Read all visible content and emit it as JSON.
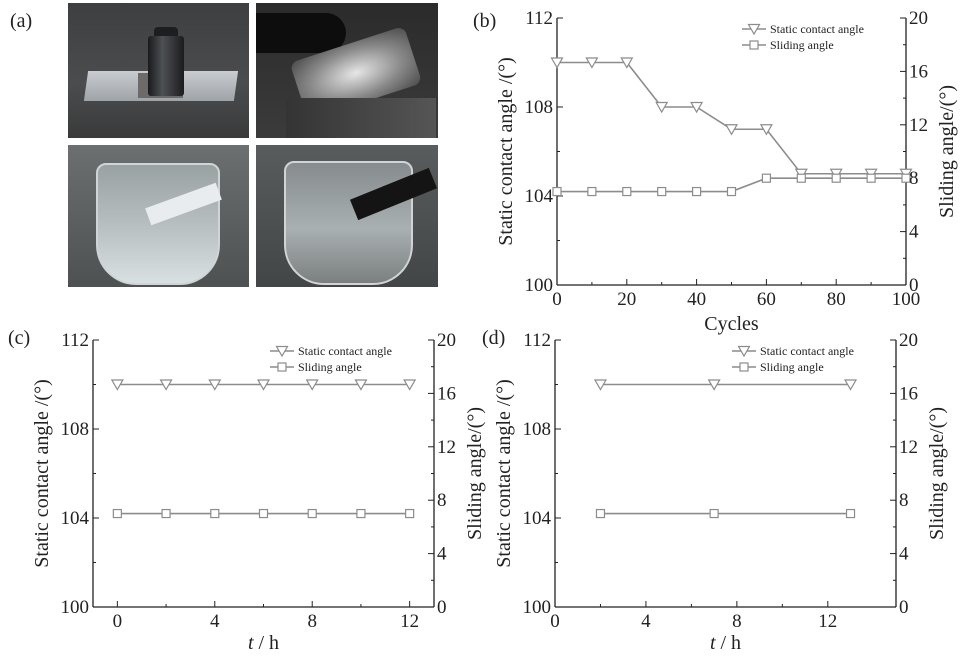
{
  "panels": {
    "a": "(a)",
    "b": "(b)",
    "c": "(c)",
    "d": "(d)"
  },
  "photos": [
    {
      "content": "weight on coated plate"
    },
    {
      "content": "abrasion with foil"
    },
    {
      "content": "sample in beaker of water"
    },
    {
      "content": "sample in beaker"
    }
  ],
  "chart_data": [
    {
      "panel": "b",
      "type": "line",
      "xlabel": "Cycles",
      "ylabel_left": "Static contact angle /(°)",
      "ylabel_right": "Sliding angle/(°)",
      "xlim": [
        0,
        100
      ],
      "ylim_left": [
        100,
        112
      ],
      "ylim_right": [
        0,
        20
      ],
      "x_ticks": [
        0,
        20,
        40,
        60,
        80,
        100
      ],
      "y_ticks_left": [
        100,
        104,
        108,
        112
      ],
      "y_ticks_right": [
        0,
        4,
        8,
        12,
        16,
        20
      ],
      "legend": "top-right",
      "series": [
        {
          "name": "Static contact angle",
          "axis": "left",
          "marker": "triangle-down",
          "x": [
            0,
            10,
            20,
            30,
            40,
            50,
            60,
            70,
            80,
            90,
            100
          ],
          "y": [
            110,
            110,
            110,
            108,
            108,
            107,
            107,
            105,
            105,
            105,
            105
          ]
        },
        {
          "name": "Sliding angle",
          "axis": "right",
          "marker": "square",
          "x": [
            0,
            10,
            20,
            30,
            40,
            50,
            60,
            70,
            80,
            90,
            100
          ],
          "y": [
            7,
            7,
            7,
            7,
            7,
            7,
            8,
            8,
            8,
            8,
            8
          ]
        }
      ]
    },
    {
      "panel": "c",
      "type": "line",
      "xlabel": "t / h",
      "ylabel_left": "Static contact angle /(°)",
      "ylabel_right": "Sliding angle/(°)",
      "xlim": [
        -1,
        13
      ],
      "ylim_left": [
        100,
        112
      ],
      "ylim_right": [
        0,
        20
      ],
      "x_ticks": [
        0,
        4,
        8,
        12
      ],
      "y_ticks_left": [
        100,
        104,
        108,
        112
      ],
      "y_ticks_right": [
        0,
        4,
        8,
        12,
        16,
        20
      ],
      "legend": "top-right",
      "series": [
        {
          "name": "Static contact angle",
          "axis": "left",
          "marker": "triangle-down",
          "x": [
            0,
            2,
            4,
            6,
            8,
            10,
            12
          ],
          "y": [
            110,
            110,
            110,
            110,
            110,
            110,
            110
          ]
        },
        {
          "name": "Sliding angle",
          "axis": "right",
          "marker": "square",
          "x": [
            0,
            2,
            4,
            6,
            8,
            10,
            12
          ],
          "y": [
            7,
            7,
            7,
            7,
            7,
            7,
            7
          ]
        }
      ]
    },
    {
      "panel": "d",
      "type": "line",
      "xlabel": "t / h",
      "ylabel_left": "Static contact angle /(°)",
      "ylabel_right": "Sliding angle/(°)",
      "xlim": [
        0,
        15
      ],
      "ylim_left": [
        100,
        112
      ],
      "ylim_right": [
        0,
        20
      ],
      "x_ticks": [
        0,
        4,
        8,
        12
      ],
      "y_ticks_left": [
        100,
        104,
        108,
        112
      ],
      "y_ticks_right": [
        0,
        4,
        8,
        12,
        16,
        20
      ],
      "legend": "top-right",
      "series": [
        {
          "name": "Static contact angle",
          "axis": "left",
          "marker": "triangle-down",
          "x": [
            2,
            7,
            13
          ],
          "y": [
            110,
            110,
            110
          ]
        },
        {
          "name": "Sliding angle",
          "axis": "right",
          "marker": "square",
          "x": [
            2,
            7,
            13
          ],
          "y": [
            7,
            7,
            7
          ]
        }
      ]
    }
  ]
}
